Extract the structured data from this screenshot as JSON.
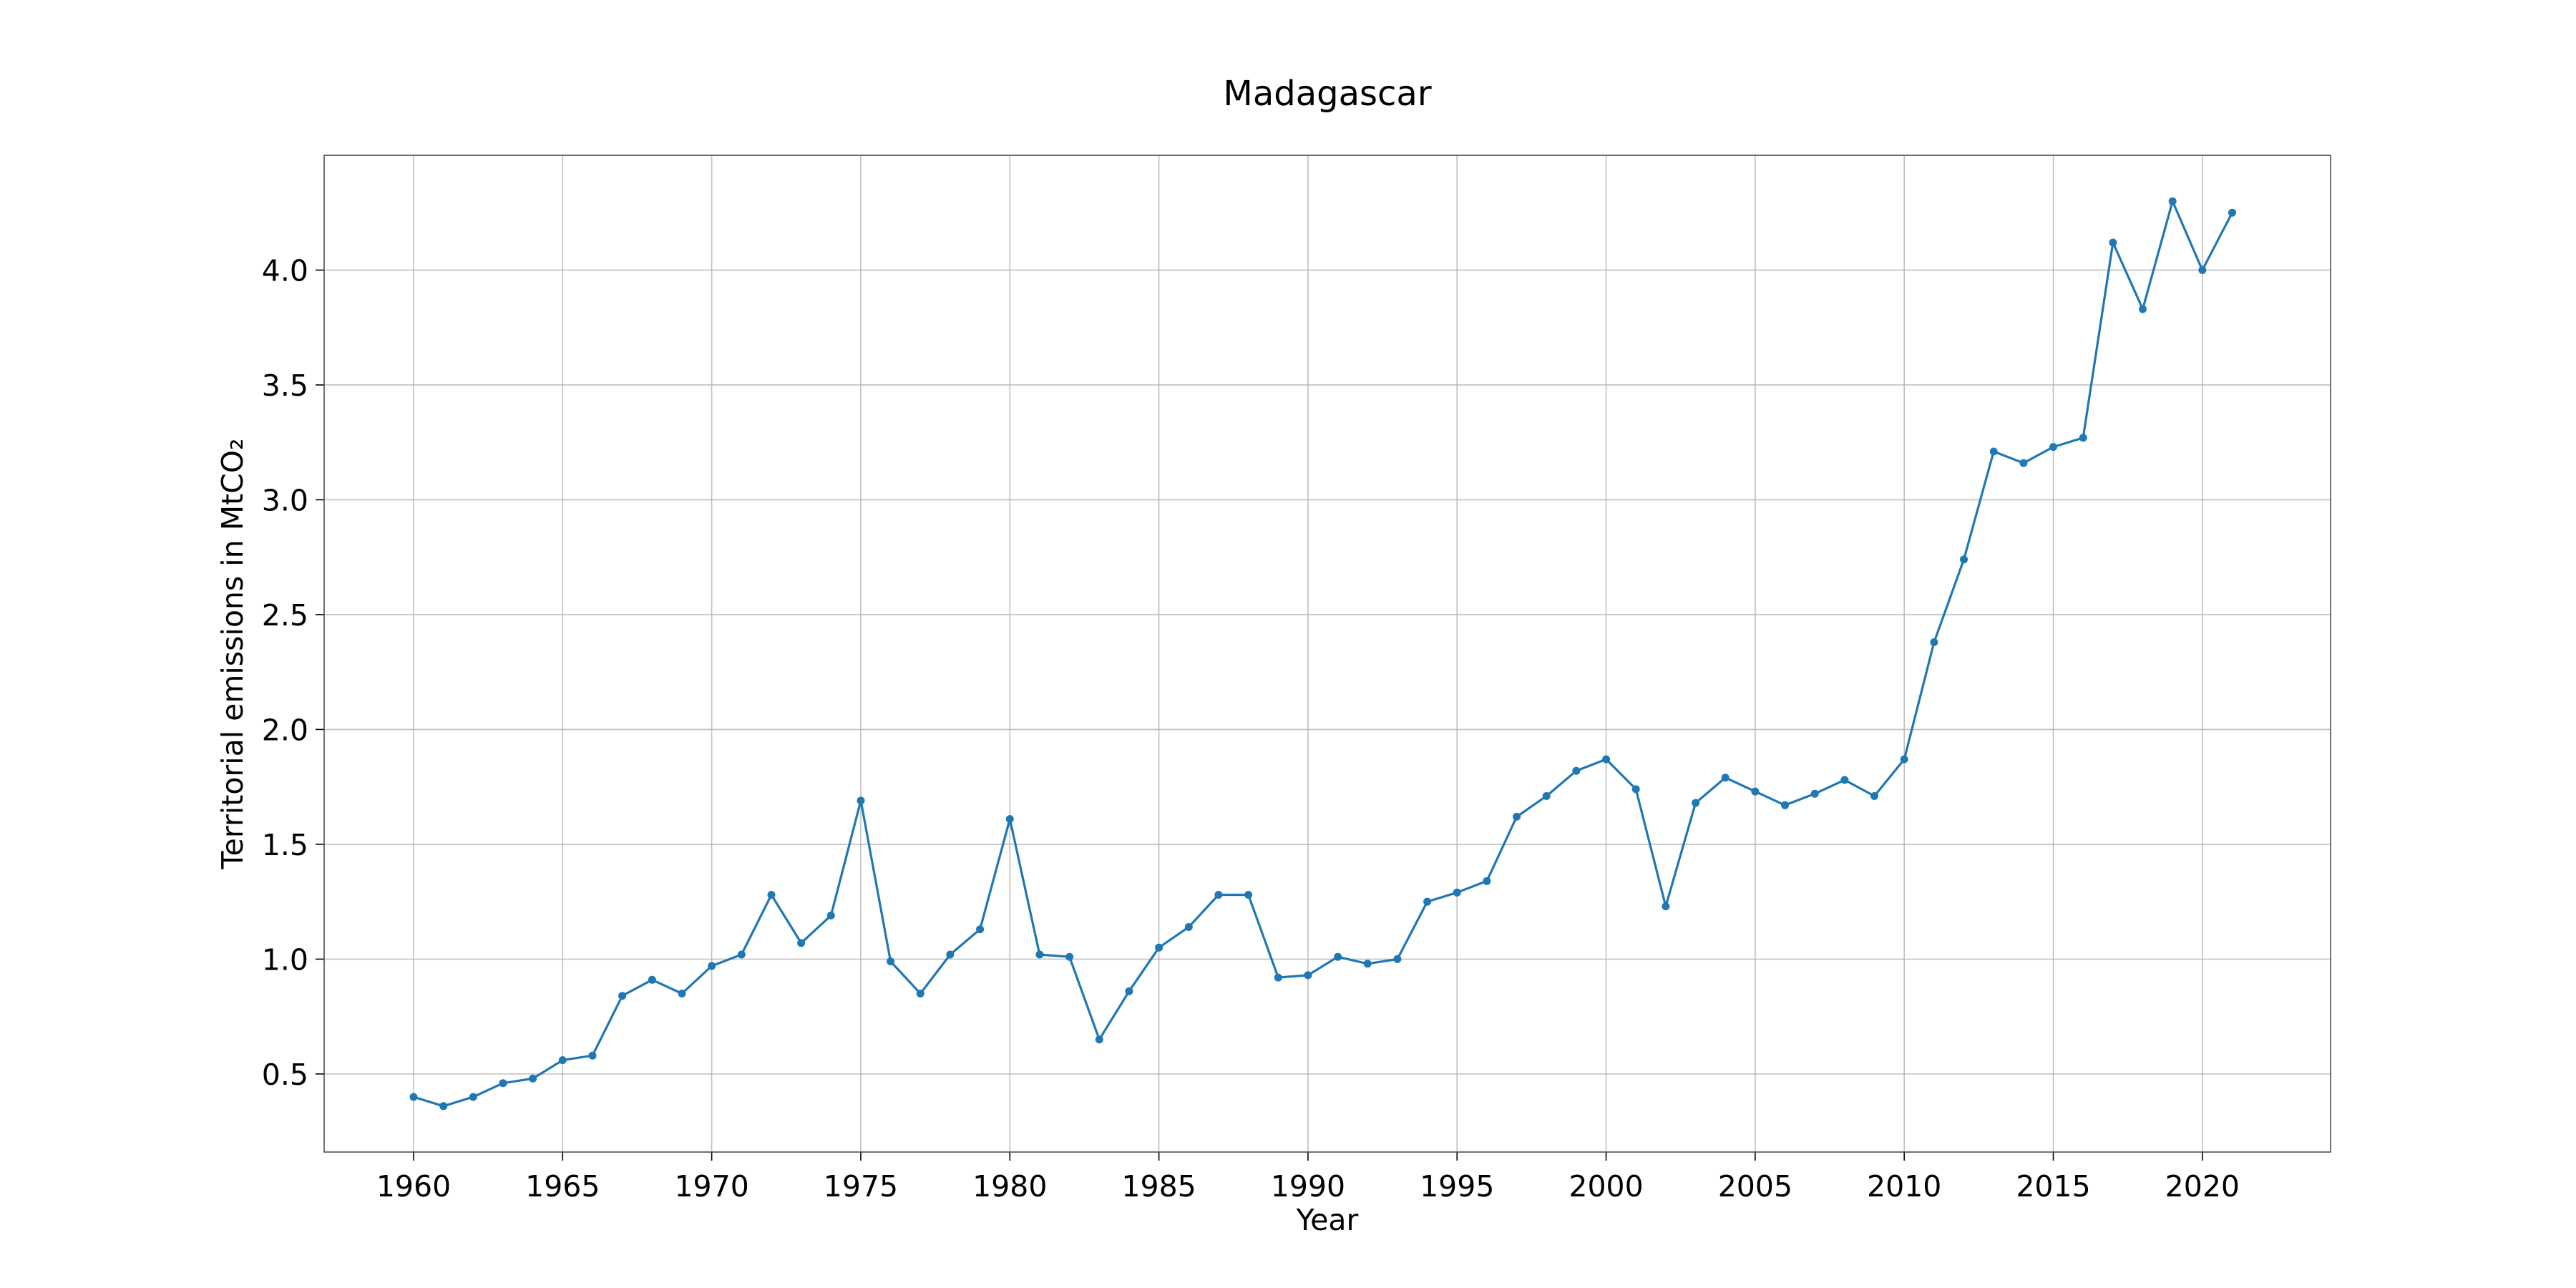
{
  "chart_data": {
    "type": "line",
    "title": "Madagascar",
    "xlabel": "Year",
    "ylabel": "Territorial emissions in MtCO₂",
    "xlim": [
      1957,
      2024.3
    ],
    "ylim": [
      0.16,
      4.5
    ],
    "grid": true,
    "x_ticks": [
      1960,
      1965,
      1970,
      1975,
      1980,
      1985,
      1990,
      1995,
      2000,
      2005,
      2010,
      2015,
      2020
    ],
    "y_ticks": [
      0.5,
      1.0,
      1.5,
      2.0,
      2.5,
      3.0,
      3.5,
      4.0
    ],
    "y_tick_labels": [
      "0.5",
      "1.0",
      "1.5",
      "2.0",
      "2.5",
      "3.0",
      "3.5",
      "4.0"
    ],
    "series_color": "#1f77b4",
    "series": [
      {
        "x": [
          1960,
          1961,
          1962,
          1963,
          1964,
          1965,
          1966,
          1967,
          1968,
          1969,
          1970,
          1971,
          1972,
          1973,
          1974,
          1975,
          1976,
          1977,
          1978,
          1979,
          1980,
          1981,
          1982,
          1983,
          1984,
          1985,
          1986,
          1987,
          1988,
          1989,
          1990,
          1991,
          1992,
          1993,
          1994,
          1995,
          1996,
          1997,
          1998,
          1999,
          2000,
          2001,
          2002,
          2003,
          2004,
          2005,
          2006,
          2007,
          2008,
          2009,
          2010,
          2011,
          2012,
          2013,
          2014,
          2015,
          2016,
          2017,
          2018,
          2019,
          2020,
          2021
        ],
        "values": [
          0.4,
          0.36,
          0.4,
          0.46,
          0.48,
          0.56,
          0.58,
          0.84,
          0.91,
          0.85,
          0.97,
          1.02,
          1.28,
          1.07,
          1.19,
          1.69,
          0.99,
          0.85,
          1.02,
          1.13,
          1.61,
          1.02,
          1.01,
          0.65,
          0.86,
          1.05,
          1.14,
          1.28,
          1.28,
          0.92,
          0.93,
          1.01,
          0.98,
          1.0,
          1.25,
          1.29,
          1.34,
          1.62,
          1.71,
          1.82,
          1.87,
          1.74,
          1.23,
          1.68,
          1.79,
          1.73,
          1.67,
          1.72,
          1.78,
          1.71,
          1.87,
          2.38,
          2.74,
          3.21,
          3.16,
          3.23,
          3.27,
          4.12,
          3.83,
          4.3,
          4.0,
          4.25
        ]
      }
    ]
  }
}
